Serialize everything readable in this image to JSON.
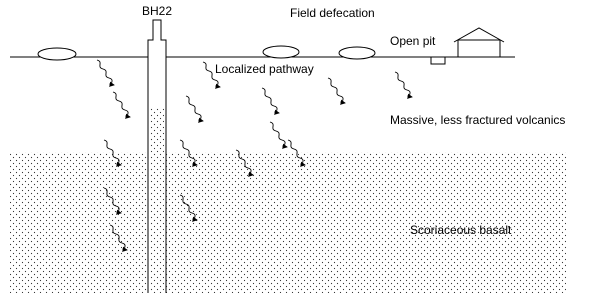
{
  "labels": {
    "borehole": "BH22",
    "field_defecation": "Field defecation",
    "open_pit": "Open pit",
    "pathway": "Localized pathway",
    "upper_layer": "Massive, less fractured volcanics",
    "lower_layer": "Scoriaceous basalt"
  }
}
